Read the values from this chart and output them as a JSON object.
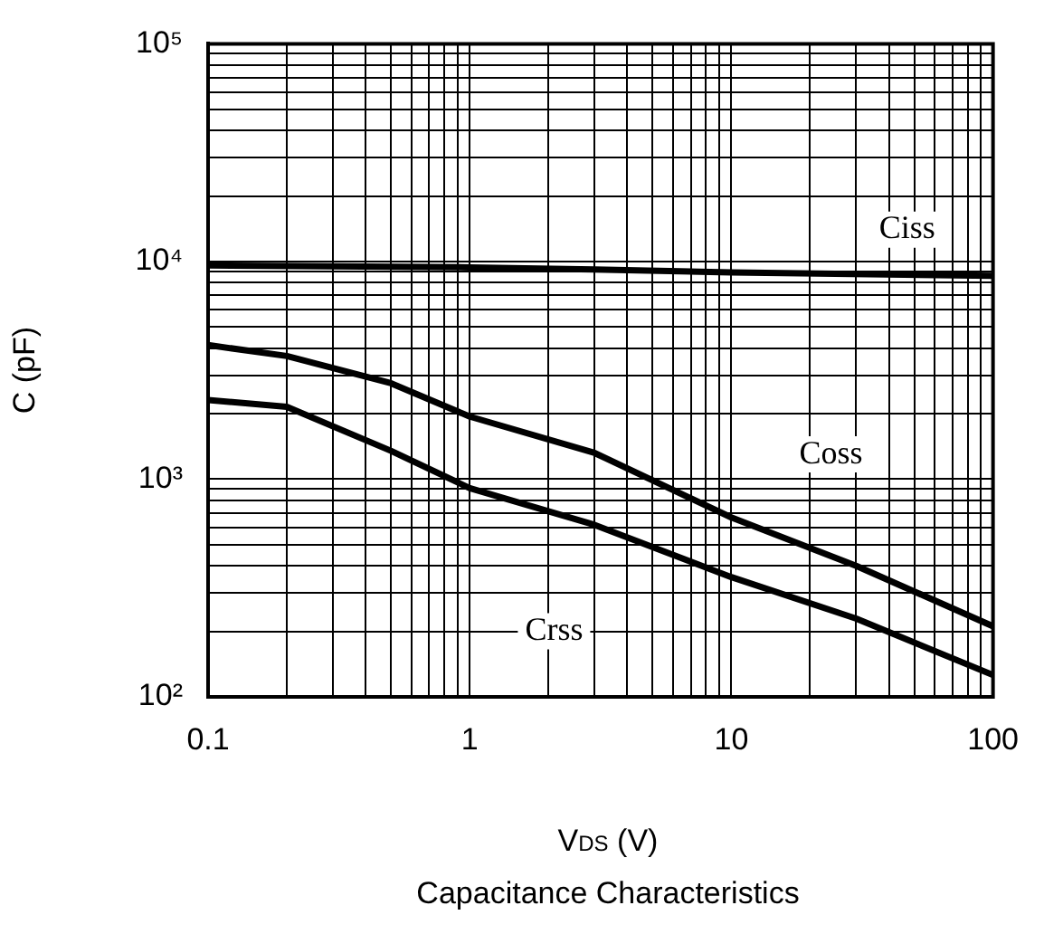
{
  "chart_data": {
    "type": "line",
    "title": "Capacitance Characteristics",
    "xlabel": "V$_{DS}$ (V)",
    "ylabel": "C (pF)",
    "log": "xy",
    "grid": true,
    "legend": false,
    "marker": "none",
    "line_style": "solid",
    "xlim": [
      0.1,
      100
    ],
    "ylim": [
      100,
      100000
    ],
    "xticks": [
      {
        "value": 0.1,
        "label": "0.1"
      },
      {
        "value": 0.2,
        "label": null
      },
      {
        "value": 0.3,
        "label": null
      },
      {
        "value": 0.4,
        "label": null
      },
      {
        "value": 0.5,
        "label": null
      },
      {
        "value": 0.6,
        "label": null
      },
      {
        "value": 0.7,
        "label": null
      },
      {
        "value": 0.8,
        "label": null
      },
      {
        "value": 0.9,
        "label": null
      },
      1,
      {
        "value": 2,
        "label": null
      },
      {
        "value": 3,
        "label": null
      },
      {
        "value": 4,
        "label": null
      },
      {
        "value": 5,
        "label": null
      },
      {
        "value": 6,
        "label": null
      },
      {
        "value": 7,
        "label": null
      },
      {
        "value": 8,
        "label": null
      },
      {
        "value": 9,
        "label": null
      },
      10,
      {
        "value": 20,
        "label": null
      },
      {
        "value": 30,
        "label": null
      },
      {
        "value": 40,
        "label": null
      },
      {
        "value": 50,
        "label": null
      },
      {
        "value": 60,
        "label": null
      },
      {
        "value": 70,
        "label": null
      },
      {
        "value": 80,
        "label": null
      },
      {
        "value": 90,
        "label": null
      },
      100
    ],
    "yticks": [
      {
        "value": 100,
        "label": "10²"
      },
      {
        "value": 200,
        "label": null
      },
      {
        "value": 300,
        "label": null
      },
      {
        "value": 400,
        "label": null
      },
      {
        "value": 500,
        "label": null
      },
      {
        "value": 600,
        "label": null
      },
      {
        "value": 700,
        "label": null
      },
      {
        "value": 800,
        "label": null
      },
      {
        "value": 900,
        "label": null
      },
      {
        "value": 1000,
        "label": "10³"
      },
      {
        "value": 2000,
        "label": null
      },
      {
        "value": 3000,
        "label": null
      },
      {
        "value": 4000,
        "label": null
      },
      {
        "value": 5000,
        "label": null
      },
      {
        "value": 6000,
        "label": null
      },
      {
        "value": 7000,
        "label": null
      },
      {
        "value": 8000,
        "label": null
      },
      {
        "value": 9000,
        "label": null
      },
      {
        "value": 10000,
        "label": "10⁴"
      },
      {
        "value": 20000,
        "label": null
      },
      {
        "value": 30000,
        "label": null
      },
      {
        "value": 40000,
        "label": null
      },
      {
        "value": 50000,
        "label": null
      },
      {
        "value": 60000,
        "label": null
      },
      {
        "value": 70000,
        "label": null
      },
      {
        "value": 80000,
        "label": null
      },
      {
        "value": 90000,
        "label": null
      },
      {
        "value": 100000,
        "label": "10⁵"
      }
    ],
    "series": [
      {
        "color": "#000000",
        "x": [
          0.1,
          1,
          3,
          10,
          100
        ],
        "values": [
          9600,
          9400,
          9200,
          8900,
          8600
        ]
      },
      {
        "color": "#000000",
        "x": [
          0.1,
          0.2,
          0.5,
          1,
          3,
          10,
          30,
          100
        ],
        "values": [
          4130,
          3680,
          2760,
          1940,
          1320,
          667,
          400,
          211
        ]
      },
      {
        "color": "#000000",
        "x": [
          0.1,
          0.2,
          0.5,
          1,
          3,
          10,
          30,
          100
        ],
        "values": [
          2310,
          2150,
          1350,
          910,
          617,
          355,
          229,
          126
        ]
      }
    ],
    "annotations": [
      {
        "text": "Ciss",
        "x": 47,
        "y": 14000
      },
      {
        "text": "Coss",
        "x": 24,
        "y": 1300
      },
      {
        "text": "Crss",
        "x": 2.1,
        "y": 200
      }
    ]
  }
}
